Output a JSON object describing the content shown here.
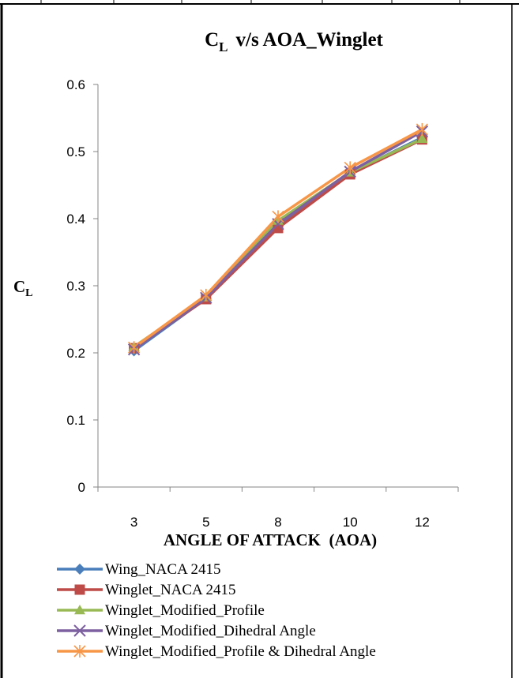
{
  "chart_data": {
    "type": "line",
    "title": {
      "main": "C",
      "sub": "L",
      "rest": "v/s AOA_Winglet"
    },
    "xlabel": "ANGLE OF ATTACK  (AOA)",
    "ylabel": {
      "main": "C",
      "sub": "L"
    },
    "categories": [
      "3",
      "5",
      "8",
      "10",
      "12"
    ],
    "ylim": [
      0,
      0.6
    ],
    "yticks": [
      "0",
      "0.1",
      "0.2",
      "0.3",
      "0.4",
      "0.5",
      "0.6"
    ],
    "grid": false,
    "legend_position": "bottom",
    "series": [
      {
        "name": "Wing_NACA 2415",
        "color": "#4a7ebb",
        "marker": "diamond",
        "values": [
          0.203,
          0.281,
          0.388,
          0.468,
          0.521
        ]
      },
      {
        "name": "Winglet_NACA 2415",
        "color": "#be4b48",
        "marker": "square",
        "values": [
          0.207,
          0.28,
          0.386,
          0.466,
          0.518
        ]
      },
      {
        "name": "Winglet_Modified_Profile",
        "color": "#98b954",
        "marker": "triangle",
        "values": [
          0.209,
          0.283,
          0.397,
          0.469,
          0.519
        ]
      },
      {
        "name": "Winglet_Modified_Dihedral Angle",
        "color": "#7d60a0",
        "marker": "x",
        "values": [
          0.205,
          0.282,
          0.392,
          0.47,
          0.53
        ]
      },
      {
        "name": "Winglet_Modified_Profile & Dihedral Angle",
        "color": "#f79646",
        "marker": "asterisk",
        "values": [
          0.208,
          0.286,
          0.403,
          0.476,
          0.533
        ]
      }
    ]
  }
}
